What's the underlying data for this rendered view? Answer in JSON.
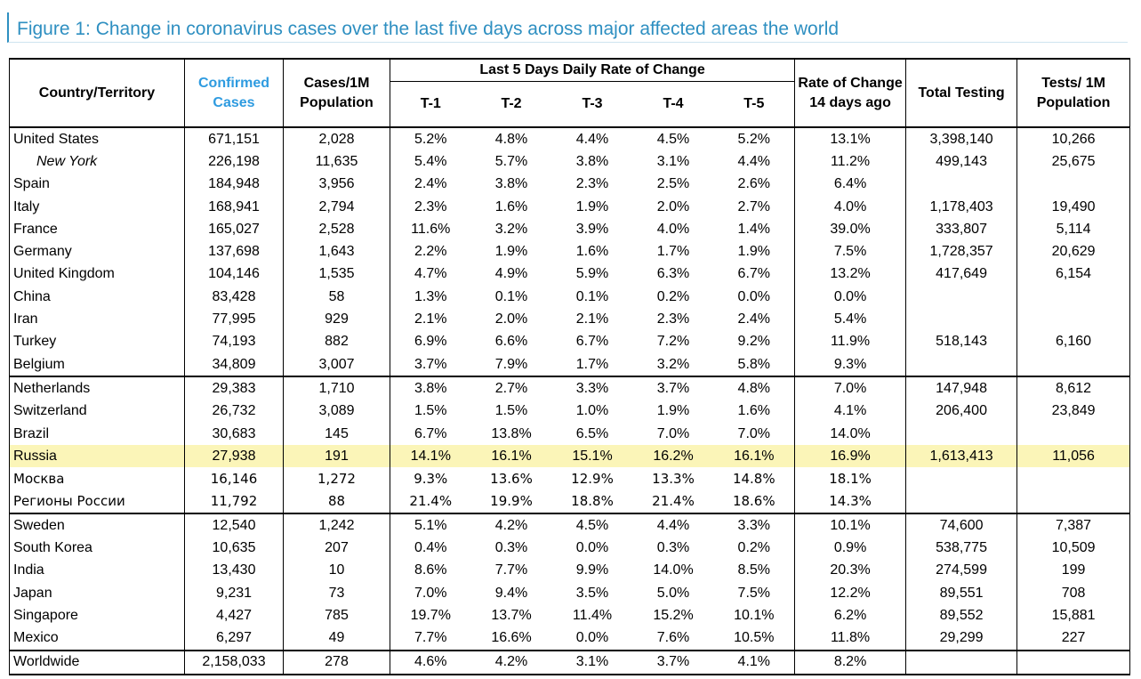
{
  "title": "Figure 1: Change in coronavirus cases over the last five days across major affected areas the world",
  "headers": {
    "country": "Country/Territory",
    "confirmed": "Confirmed Cases",
    "cases_per_1m": "Cases/1M Population",
    "group": "Last 5 Days Daily Rate of Change",
    "t1": "T-1",
    "t2": "T-2",
    "t3": "T-3",
    "t4": "T-4",
    "t5": "T-5",
    "rate14": "Rate of Change 14 days ago",
    "testing": "Total Testing",
    "tests_per_1m": "Tests/ 1M Population"
  },
  "colors": {
    "title": "#2e8fc1",
    "confirmed_header": "#2e9be0",
    "highlight": "#fbf5b8"
  },
  "rows": [
    {
      "name": "United States",
      "confirmed": "671,151",
      "cpm": "2,028",
      "t1": "5.2%",
      "t2": "4.8%",
      "t3": "4.4%",
      "t4": "4.5%",
      "t5": "5.2%",
      "r14": "13.1%",
      "testing": "3,398,140",
      "tpm": "10,266"
    },
    {
      "name": "New York",
      "confirmed": "226,198",
      "cpm": "11,635",
      "t1": "5.4%",
      "t2": "5.7%",
      "t3": "3.8%",
      "t4": "3.1%",
      "t5": "4.4%",
      "r14": "11.2%",
      "testing": "499,143",
      "tpm": "25,675",
      "sub": true
    },
    {
      "name": "Spain",
      "confirmed": "184,948",
      "cpm": "3,956",
      "t1": "2.4%",
      "t2": "3.8%",
      "t3": "2.3%",
      "t4": "2.5%",
      "t5": "2.6%",
      "r14": "6.4%",
      "testing": "",
      "tpm": ""
    },
    {
      "name": "Italy",
      "confirmed": "168,941",
      "cpm": "2,794",
      "t1": "2.3%",
      "t2": "1.6%",
      "t3": "1.9%",
      "t4": "2.0%",
      "t5": "2.7%",
      "r14": "4.0%",
      "testing": "1,178,403",
      "tpm": "19,490"
    },
    {
      "name": "France",
      "confirmed": "165,027",
      "cpm": "2,528",
      "t1": "11.6%",
      "t2": "3.2%",
      "t3": "3.9%",
      "t4": "4.0%",
      "t5": "1.4%",
      "r14": "39.0%",
      "testing": "333,807",
      "tpm": "5,114"
    },
    {
      "name": "Germany",
      "confirmed": "137,698",
      "cpm": "1,643",
      "t1": "2.2%",
      "t2": "1.9%",
      "t3": "1.6%",
      "t4": "1.7%",
      "t5": "1.9%",
      "r14": "7.5%",
      "testing": "1,728,357",
      "tpm": "20,629"
    },
    {
      "name": "United Kingdom",
      "confirmed": "104,146",
      "cpm": "1,535",
      "t1": "4.7%",
      "t2": "4.9%",
      "t3": "5.9%",
      "t4": "6.3%",
      "t5": "6.7%",
      "r14": "13.2%",
      "testing": "417,649",
      "tpm": "6,154"
    },
    {
      "name": "China",
      "confirmed": "83,428",
      "cpm": "58",
      "t1": "1.3%",
      "t2": "0.1%",
      "t3": "0.1%",
      "t4": "0.2%",
      "t5": "0.0%",
      "r14": "0.0%",
      "testing": "",
      "tpm": ""
    },
    {
      "name": "Iran",
      "confirmed": "77,995",
      "cpm": "929",
      "t1": "2.1%",
      "t2": "2.0%",
      "t3": "2.1%",
      "t4": "2.3%",
      "t5": "2.4%",
      "r14": "5.4%",
      "testing": "",
      "tpm": ""
    },
    {
      "name": "Turkey",
      "confirmed": "74,193",
      "cpm": "882",
      "t1": "6.9%",
      "t2": "6.6%",
      "t3": "6.7%",
      "t4": "7.2%",
      "t5": "9.2%",
      "r14": "11.9%",
      "testing": "518,143",
      "tpm": "6,160"
    },
    {
      "name": "Belgium",
      "confirmed": "34,809",
      "cpm": "3,007",
      "t1": "3.7%",
      "t2": "7.9%",
      "t3": "1.7%",
      "t4": "3.2%",
      "t5": "5.8%",
      "r14": "9.3%",
      "testing": "",
      "tpm": ""
    },
    {
      "name": "Netherlands",
      "confirmed": "29,383",
      "cpm": "1,710",
      "t1": "3.8%",
      "t2": "2.7%",
      "t3": "3.3%",
      "t4": "3.7%",
      "t5": "4.8%",
      "r14": "7.0%",
      "testing": "147,948",
      "tpm": "8,612",
      "sep": true
    },
    {
      "name": "Switzerland",
      "confirmed": "26,732",
      "cpm": "3,089",
      "t1": "1.5%",
      "t2": "1.5%",
      "t3": "1.0%",
      "t4": "1.9%",
      "t5": "1.6%",
      "r14": "4.1%",
      "testing": "206,400",
      "tpm": "23,849"
    },
    {
      "name": "Brazil",
      "confirmed": "30,683",
      "cpm": "145",
      "t1": "6.7%",
      "t2": "13.8%",
      "t3": "6.5%",
      "t4": "7.0%",
      "t5": "7.0%",
      "r14": "14.0%",
      "testing": "",
      "tpm": ""
    },
    {
      "name": "Russia",
      "confirmed": "27,938",
      "cpm": "191",
      "t1": "14.1%",
      "t2": "16.1%",
      "t3": "15.1%",
      "t4": "16.2%",
      "t5": "16.1%",
      "r14": "16.9%",
      "testing": "1,613,413",
      "tpm": "11,056",
      "highlight": true
    },
    {
      "name": "Москва",
      "confirmed": "16,146",
      "cpm": "1,272",
      "t1": "9.3%",
      "t2": "13.6%",
      "t3": "12.9%",
      "t4": "13.3%",
      "t5": "14.8%",
      "r14": "18.1%",
      "testing": "",
      "tpm": "",
      "cyr": true
    },
    {
      "name": "Регионы России",
      "confirmed": "11,792",
      "cpm": "88",
      "t1": "21.4%",
      "t2": "19.9%",
      "t3": "18.8%",
      "t4": "21.4%",
      "t5": "18.6%",
      "r14": "14.3%",
      "testing": "",
      "tpm": "",
      "cyr": true
    },
    {
      "name": "Sweden",
      "confirmed": "12,540",
      "cpm": "1,242",
      "t1": "5.1%",
      "t2": "4.2%",
      "t3": "4.5%",
      "t4": "4.4%",
      "t5": "3.3%",
      "r14": "10.1%",
      "testing": "74,600",
      "tpm": "7,387",
      "sep": true
    },
    {
      "name": "South Korea",
      "confirmed": "10,635",
      "cpm": "207",
      "t1": "0.4%",
      "t2": "0.3%",
      "t3": "0.0%",
      "t4": "0.3%",
      "t5": "0.2%",
      "r14": "0.9%",
      "testing": "538,775",
      "tpm": "10,509"
    },
    {
      "name": "India",
      "confirmed": "13,430",
      "cpm": "10",
      "t1": "8.6%",
      "t2": "7.7%",
      "t3": "9.9%",
      "t4": "14.0%",
      "t5": "8.5%",
      "r14": "20.3%",
      "testing": "274,599",
      "tpm": "199"
    },
    {
      "name": "Japan",
      "confirmed": "9,231",
      "cpm": "73",
      "t1": "7.0%",
      "t2": "9.4%",
      "t3": "3.5%",
      "t4": "5.0%",
      "t5": "7.5%",
      "r14": "12.2%",
      "testing": "89,551",
      "tpm": "708"
    },
    {
      "name": "Singapore",
      "confirmed": "4,427",
      "cpm": "785",
      "t1": "19.7%",
      "t2": "13.7%",
      "t3": "11.4%",
      "t4": "15.2%",
      "t5": "10.1%",
      "r14": "6.2%",
      "testing": "89,552",
      "tpm": "15,881"
    },
    {
      "name": "Mexico",
      "confirmed": "6,297",
      "cpm": "49",
      "t1": "7.7%",
      "t2": "16.6%",
      "t3": "0.0%",
      "t4": "7.6%",
      "t5": "10.5%",
      "r14": "11.8%",
      "testing": "29,299",
      "tpm": "227"
    },
    {
      "name": "Worldwide",
      "confirmed": "2,158,033",
      "cpm": "278",
      "t1": "4.6%",
      "t2": "4.2%",
      "t3": "3.1%",
      "t4": "3.7%",
      "t5": "4.1%",
      "r14": "8.2%",
      "testing": "",
      "tpm": "",
      "sep": true
    }
  ]
}
